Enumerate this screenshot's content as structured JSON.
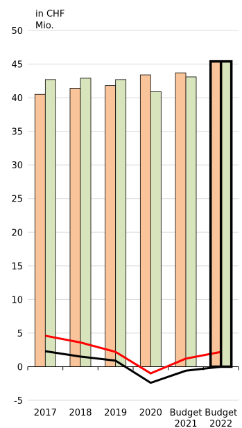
{
  "chart_data": {
    "type": "bar",
    "unit_label": [
      "in CHF",
      "Mio."
    ],
    "categories": [
      [
        "2017"
      ],
      [
        "2018"
      ],
      [
        "2019"
      ],
      [
        "2020"
      ],
      [
        "Budget",
        "2021"
      ],
      [
        "Budget",
        "2022"
      ]
    ],
    "ylim": [
      -5,
      50
    ],
    "yticks": [
      -5,
      0,
      5,
      10,
      15,
      20,
      25,
      30,
      35,
      40,
      45,
      50
    ],
    "grid": true,
    "highlight_category": 5,
    "bar_series": [
      {
        "color": "#f9c49a",
        "values": [
          40.5,
          41.4,
          41.8,
          43.4,
          43.7,
          45.4
        ]
      },
      {
        "color": "#d8e4bc",
        "values": [
          42.7,
          42.9,
          42.7,
          40.9,
          43.1,
          45.4
        ]
      }
    ],
    "line_series": [
      {
        "color": "#ff0000",
        "values": [
          4.6,
          3.6,
          2.2,
          -1.0,
          1.2,
          2.2
        ]
      },
      {
        "color": "#000000",
        "values": [
          2.3,
          1.5,
          0.9,
          -2.4,
          -0.6,
          0.0
        ]
      }
    ]
  }
}
